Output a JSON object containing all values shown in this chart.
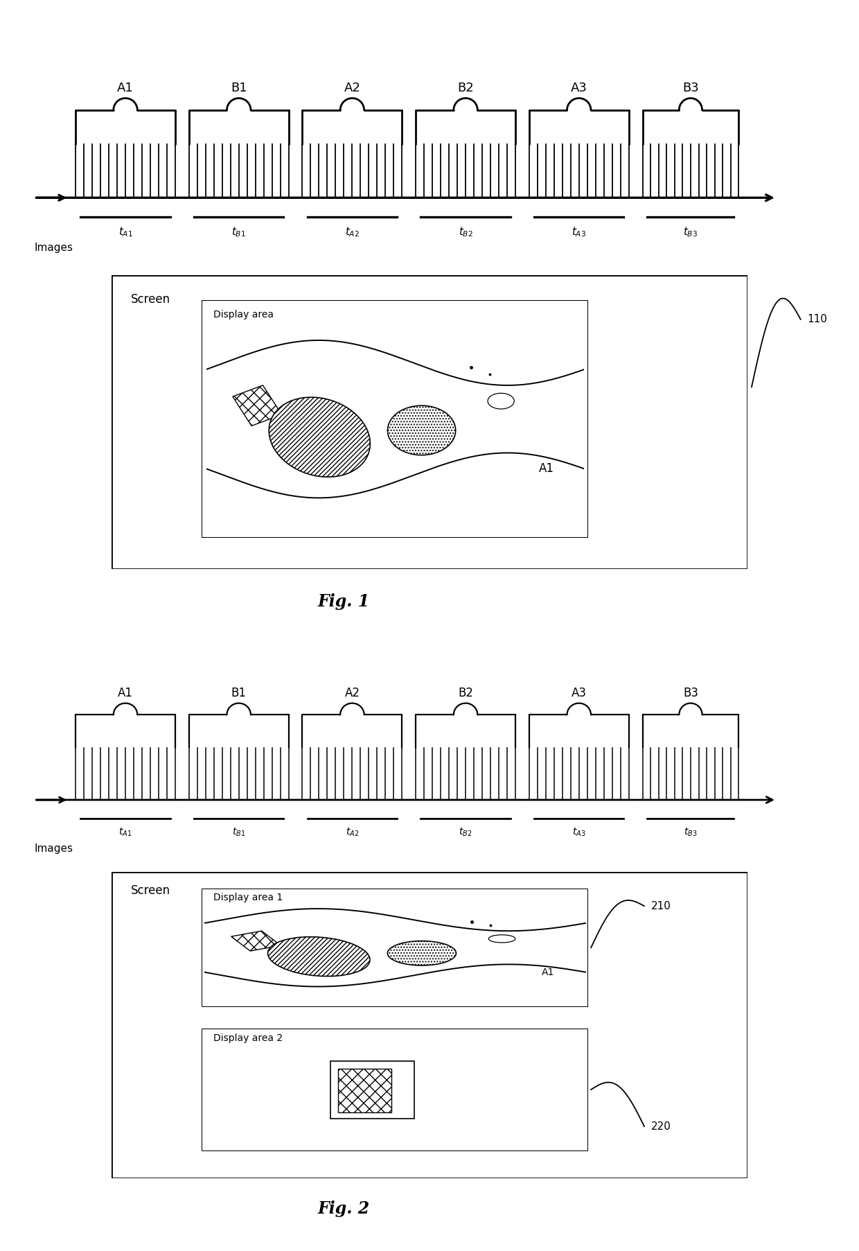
{
  "fig_width": 12.4,
  "fig_height": 18.05,
  "bg_color": "#ffffff",
  "timeline_groups": [
    "A1",
    "B1",
    "A2",
    "B2",
    "A3",
    "B3"
  ],
  "timeline_labels": [
    "t_{A1}",
    "t_{B1}",
    "t_{A2}",
    "t_{B2}",
    "t_{A3}",
    "t_{B3}"
  ],
  "fig1_ref": "110",
  "fig2_ref1": "210",
  "fig2_ref2": "220",
  "fig1_caption": "Fig. 1",
  "fig2_caption": "Fig. 2",
  "group_starts": [
    0.02,
    0.185,
    0.35,
    0.515,
    0.68,
    0.845
  ],
  "group_ends": [
    0.165,
    0.33,
    0.495,
    0.66,
    0.825,
    0.985
  ],
  "n_ticks": 13
}
